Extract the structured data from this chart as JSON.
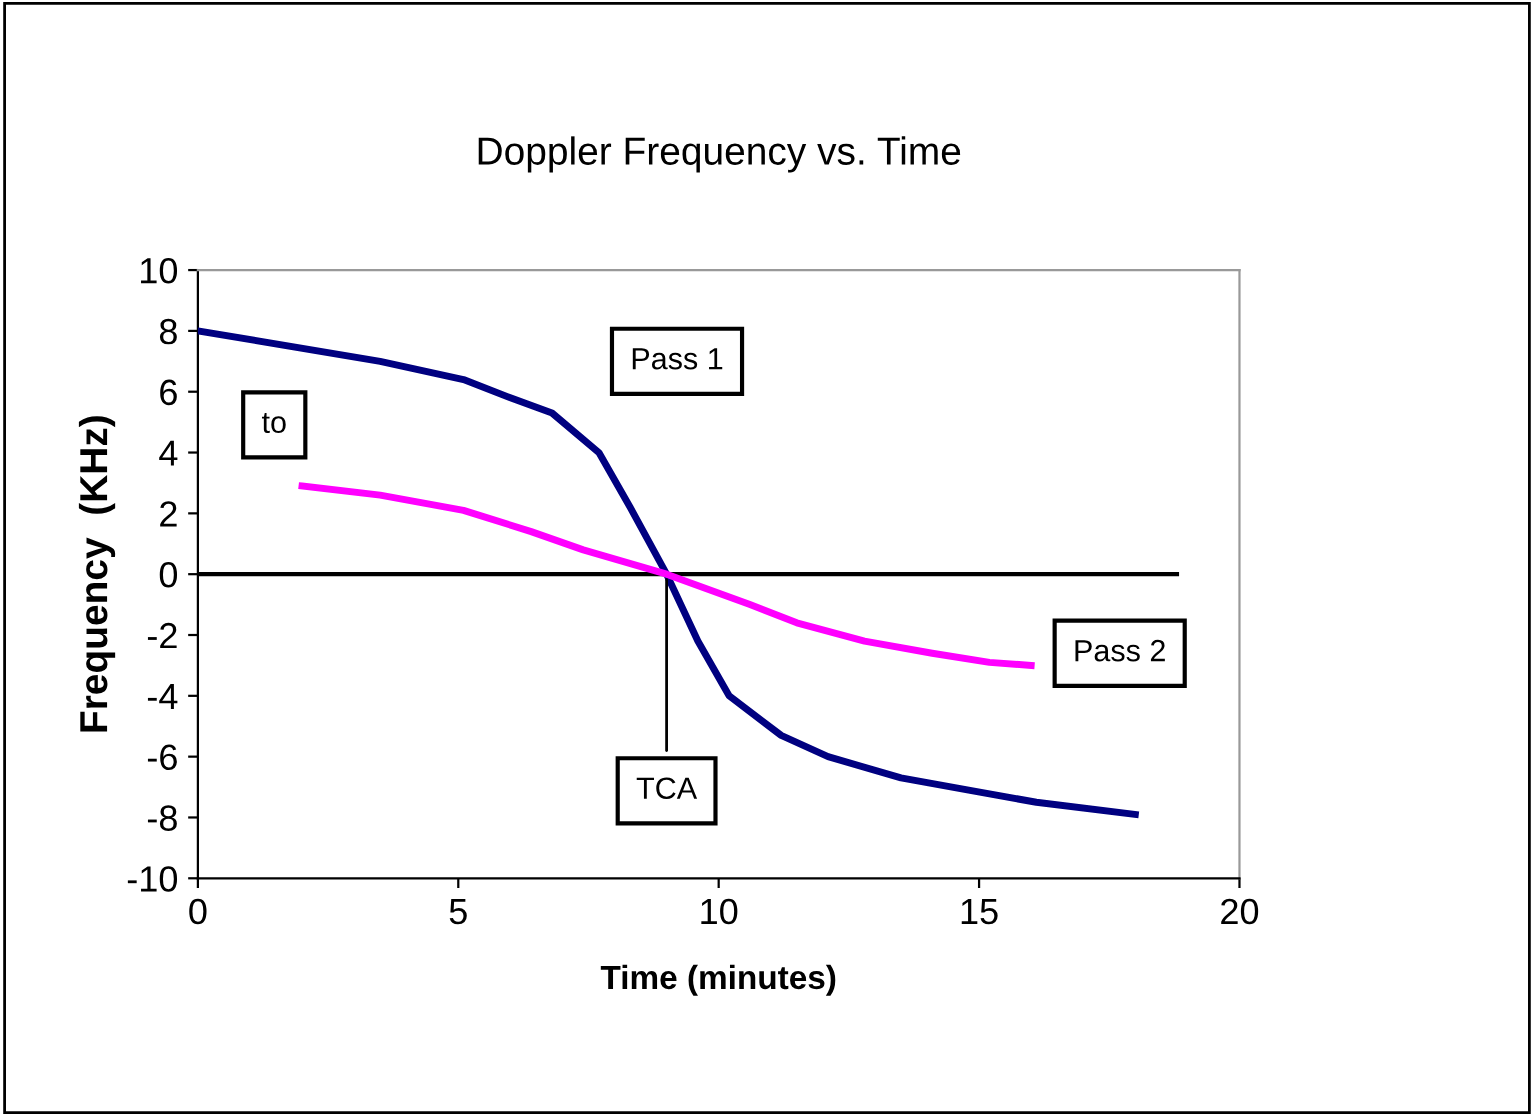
{
  "chart_data": {
    "type": "line",
    "title": "Doppler Frequency vs. Time",
    "xlabel": "Time (minutes)",
    "ylabel": "Frequency  (KHz)",
    "xlim": [
      0,
      20
    ],
    "xticks": [
      0,
      5,
      10,
      15,
      20
    ],
    "ylim": [
      -10,
      10
    ],
    "yticks": [
      -10,
      -8,
      -6,
      -4,
      -2,
      0,
      2,
      4,
      6,
      8,
      10
    ],
    "grid": false,
    "legend": false,
    "marker": "none",
    "line_style": "solid",
    "series": [
      {
        "name": "Pass 1",
        "color": "#000080",
        "x": [
          0,
          3.5,
          5.1,
          6,
          6.8,
          7.7,
          8.3,
          9,
          9.6,
          10.2,
          11.2,
          12.1,
          13.5,
          14.8,
          16.1,
          18
        ],
        "values": [
          8,
          7,
          6.4,
          5.8,
          5.3,
          4,
          2.2,
          0,
          -2.2,
          -4,
          -5.3,
          -6,
          -6.7,
          -7.1,
          -7.5,
          -7.9
        ]
      },
      {
        "name": "Pass 2",
        "color": "#ff00ff",
        "x": [
          2,
          3.5,
          5.1,
          6.4,
          7.4,
          9,
          10.6,
          11.5,
          12.8,
          14.1,
          15.2,
          16
        ],
        "values": [
          2.9,
          2.6,
          2.1,
          1.4,
          0.8,
          0,
          -1,
          -1.6,
          -2.2,
          -2.6,
          -2.9,
          -3
        ]
      }
    ],
    "ref_lines": [
      {
        "axis": "y",
        "value": 0,
        "color": "#000000"
      }
    ],
    "annotations": [
      {
        "text": "to",
        "x": 2,
        "y": 2.9
      },
      {
        "text": "TCA",
        "x": 9,
        "y": 0
      }
    ]
  }
}
